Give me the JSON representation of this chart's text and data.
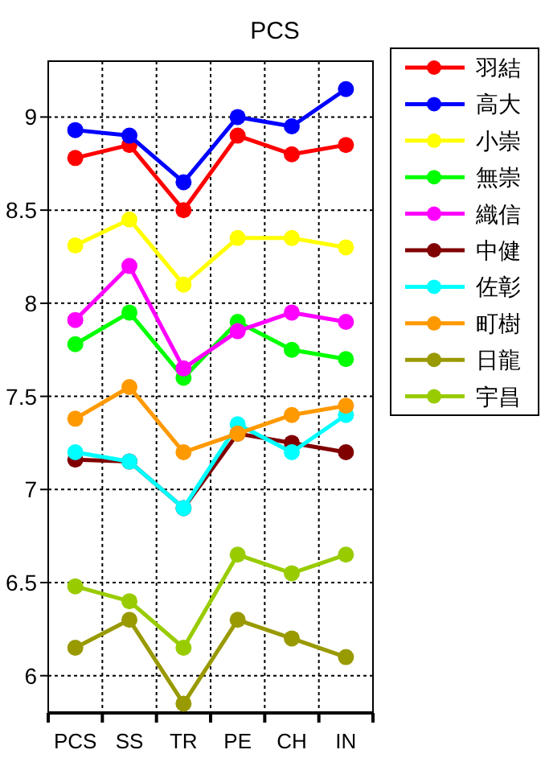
{
  "chart_data": {
    "type": "line",
    "title": "PCS",
    "categories": [
      "PCS",
      "SS",
      "TR",
      "PE",
      "CH",
      "IN"
    ],
    "ylim": [
      5.8,
      9.3
    ],
    "yticks": [
      {
        "value": 6,
        "label": "6"
      },
      6.5,
      {
        "value": 7,
        "label": "7"
      },
      7.5,
      {
        "value": 8,
        "label": "8"
      },
      8.5,
      {
        "value": 9,
        "label": "9"
      }
    ],
    "grid": true,
    "legend": "right",
    "marker": "circle",
    "line_style": "solid",
    "series": [
      {
        "name": "羽結",
        "color": "#ff0000",
        "values": [
          8.78,
          8.85,
          8.5,
          8.9,
          8.8,
          8.85
        ]
      },
      {
        "name": "高大",
        "color": "#0000ff",
        "values": [
          8.93,
          8.9,
          8.65,
          9.0,
          8.95,
          9.15
        ]
      },
      {
        "name": "小崇",
        "color": "#ffff00",
        "values": [
          8.31,
          8.45,
          8.1,
          8.35,
          8.35,
          8.3
        ]
      },
      {
        "name": "無崇",
        "color": "#00ff00",
        "values": [
          7.78,
          7.95,
          7.6,
          7.9,
          7.75,
          7.7
        ]
      },
      {
        "name": "織信",
        "color": "#ff00ff",
        "values": [
          7.91,
          8.2,
          7.65,
          7.85,
          7.95,
          7.9
        ]
      },
      {
        "name": "中健",
        "color": "#800000",
        "values": [
          7.16,
          7.15,
          6.9,
          7.3,
          7.25,
          7.2
        ]
      },
      {
        "name": "佐彰",
        "color": "#00ffff",
        "values": [
          7.2,
          7.15,
          6.9,
          7.35,
          7.2,
          7.4
        ]
      },
      {
        "name": "町樹",
        "color": "#ff9900",
        "values": [
          7.38,
          7.55,
          7.2,
          7.3,
          7.4,
          7.45
        ]
      },
      {
        "name": "日龍",
        "color": "#999900",
        "values": [
          6.15,
          6.3,
          5.85,
          6.3,
          6.2,
          6.1
        ]
      },
      {
        "name": "宇昌",
        "color": "#99cc00",
        "values": [
          6.48,
          6.4,
          6.15,
          6.65,
          6.55,
          6.65
        ]
      }
    ]
  }
}
